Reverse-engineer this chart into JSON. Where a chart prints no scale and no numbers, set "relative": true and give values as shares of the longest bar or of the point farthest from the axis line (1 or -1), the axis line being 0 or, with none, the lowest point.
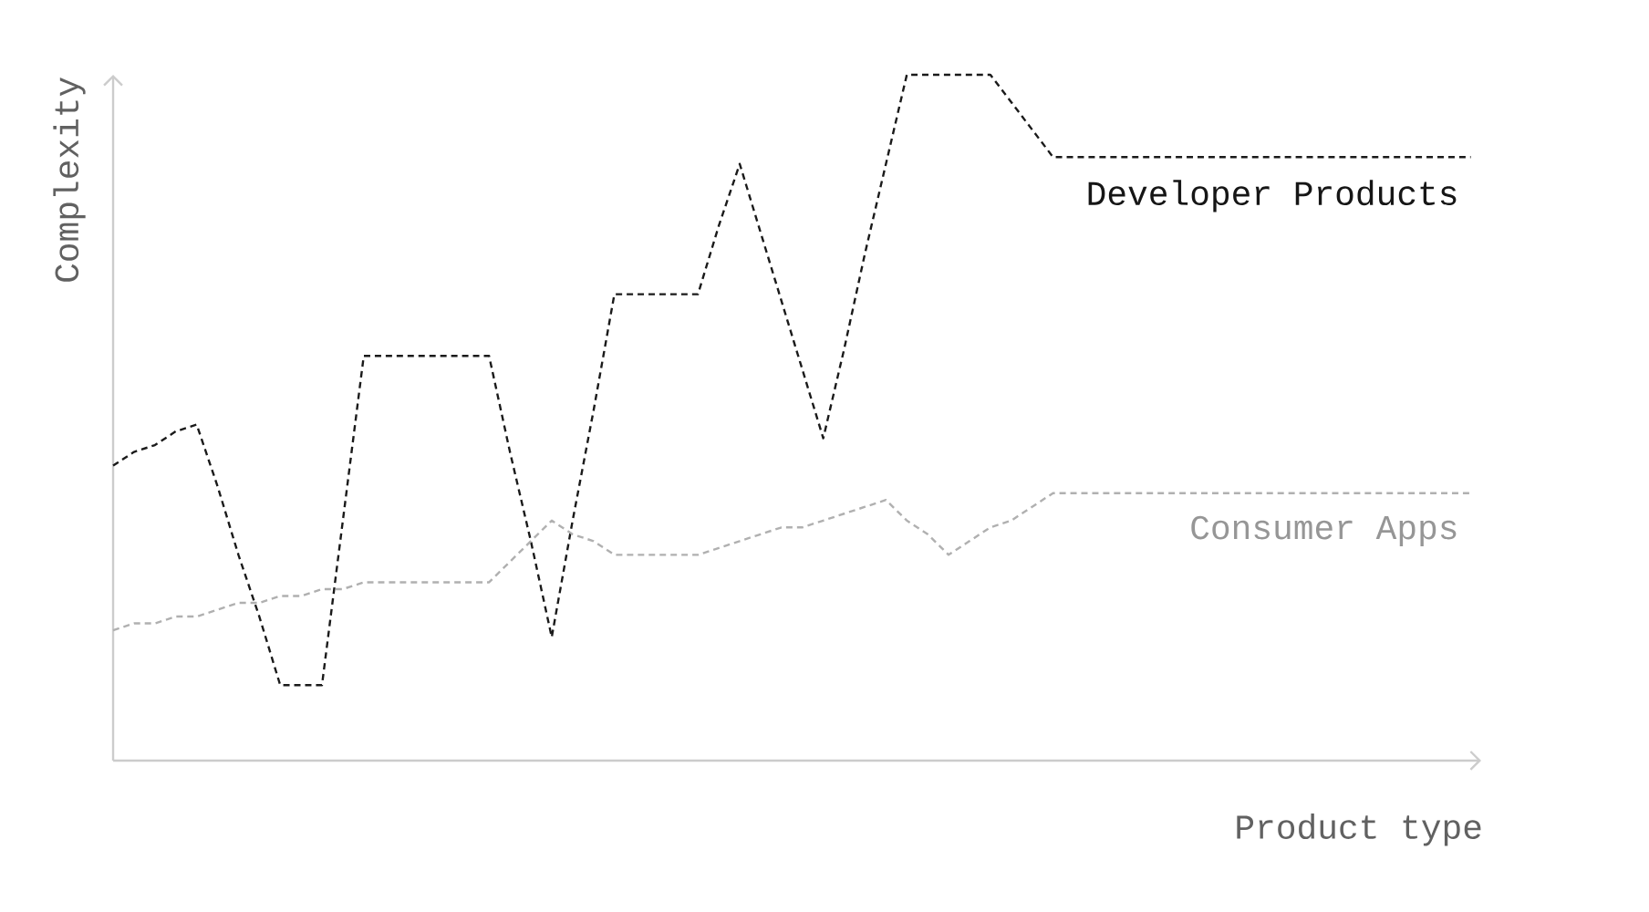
{
  "chart_data": {
    "type": "line",
    "relative": true,
    "xlabel": "Product type",
    "ylabel": "Complexity",
    "line_style": "dashed",
    "categories": [
      null,
      null,
      null,
      null,
      null,
      null,
      null,
      null,
      null,
      null,
      null,
      null,
      null,
      null,
      null,
      null,
      null,
      null,
      null,
      null,
      null,
      null,
      null,
      null,
      null,
      null,
      null,
      null,
      null,
      null,
      null,
      null,
      null,
      null,
      null,
      null,
      null,
      null,
      null,
      null,
      null,
      null,
      null,
      null,
      null,
      null,
      null,
      null,
      null,
      null,
      null,
      null,
      null,
      null,
      null,
      null,
      null,
      null,
      null,
      null,
      null,
      null,
      null,
      null,
      null,
      null
    ],
    "series": [
      {
        "name": "Developer Products",
        "color": "#1a1a1a",
        "values": [
          0.43,
          0.45,
          0.46,
          0.48,
          0.49,
          0.4,
          0.3,
          0.21,
          0.11,
          0.11,
          0.11,
          0.35,
          0.59,
          0.59,
          0.59,
          0.59,
          0.59,
          0.59,
          0.59,
          0.45,
          0.32,
          0.18,
          0.35,
          0.51,
          0.68,
          0.68,
          0.68,
          0.68,
          0.68,
          0.78,
          0.87,
          0.77,
          0.67,
          0.57,
          0.47,
          0.6,
          0.74,
          0.87,
          1,
          1,
          1,
          1,
          1,
          0.96,
          0.92,
          0.88,
          0.88,
          0.88,
          0.88,
          0.88,
          0.88,
          0.88,
          0.88,
          0.88,
          0.88,
          0.88,
          0.88,
          0.88,
          0.88,
          0.88,
          0.88,
          0.88,
          0.88,
          0.88,
          0.88,
          0.88
        ]
      },
      {
        "name": "Consumer Apps",
        "color": "#b0b0b0",
        "values": [
          0.19,
          0.2,
          0.2,
          0.21,
          0.21,
          0.22,
          0.23,
          0.23,
          0.24,
          0.24,
          0.25,
          0.25,
          0.26,
          0.26,
          0.26,
          0.26,
          0.26,
          0.26,
          0.26,
          0.29,
          0.32,
          0.35,
          0.33,
          0.32,
          0.3,
          0.3,
          0.3,
          0.3,
          0.3,
          0.31,
          0.32,
          0.33,
          0.34,
          0.34,
          0.35,
          0.36,
          0.37,
          0.38,
          0.35,
          0.33,
          0.3,
          0.32,
          0.34,
          0.35,
          0.37,
          0.39,
          0.39,
          0.39,
          0.39,
          0.39,
          0.39,
          0.39,
          0.39,
          0.39,
          0.39,
          0.39,
          0.39,
          0.39,
          0.39,
          0.39,
          0.39,
          0.39,
          0.39,
          0.39,
          0.39,
          0.39
        ]
      }
    ]
  }
}
